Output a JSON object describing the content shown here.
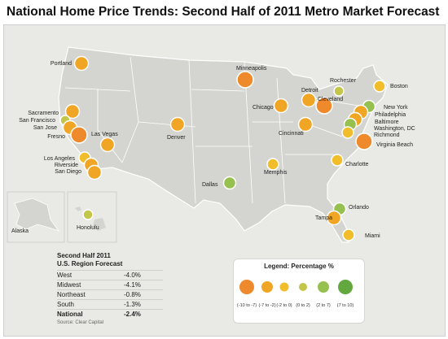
{
  "title": "National Home Price Trends: Second Half of 2011 Metro Market Forecast",
  "colors": {
    "dark_orange": "#ee8a2c",
    "orange": "#f0a624",
    "yellow_orange": "#f2bd2a",
    "yellow_green": "#c4c64a",
    "light_green": "#96c050",
    "green": "#62a83e"
  },
  "cities": [
    {
      "name": "Portland",
      "cat": 1
    },
    {
      "name": "Sacramento",
      "cat": 1
    },
    {
      "name": "San Francisco",
      "cat": 3
    },
    {
      "name": "San Jose",
      "cat": 1
    },
    {
      "name": "Fresno",
      "cat": 0
    },
    {
      "name": "Las Vegas",
      "cat": 1
    },
    {
      "name": "Los Angeles",
      "cat": 2
    },
    {
      "name": "Riverside",
      "cat": 1
    },
    {
      "name": "San Diego",
      "cat": 1
    },
    {
      "name": "Denver",
      "cat": 1
    },
    {
      "name": "Minneapolis",
      "cat": 0
    },
    {
      "name": "Chicago",
      "cat": 1
    },
    {
      "name": "Detroit",
      "cat": 1
    },
    {
      "name": "Cleveland",
      "cat": 0
    },
    {
      "name": "Cincinnati",
      "cat": 1
    },
    {
      "name": "Rochester",
      "cat": 3
    },
    {
      "name": "Boston",
      "cat": 2
    },
    {
      "name": "New York",
      "cat": 4
    },
    {
      "name": "Philadelphia",
      "cat": 1
    },
    {
      "name": "Baltimore",
      "cat": 1
    },
    {
      "name": "Washington, DC",
      "cat": 4
    },
    {
      "name": "Richmond",
      "cat": 2
    },
    {
      "name": "Virginia Beach",
      "cat": 0
    },
    {
      "name": "Charlotte",
      "cat": 2
    },
    {
      "name": "Memphis",
      "cat": 2
    },
    {
      "name": "Dallas",
      "cat": 4
    },
    {
      "name": "Orlando",
      "cat": 4
    },
    {
      "name": "Tampa",
      "cat": 1
    },
    {
      "name": "Miami",
      "cat": 2
    },
    {
      "name": "Honolulu",
      "cat": 3
    }
  ],
  "inset_labels": {
    "alaska": "Alaska"
  },
  "region_forecast": {
    "heading1": "Second Half 2011",
    "heading2": "U.S. Region Forecast",
    "rows": [
      {
        "region": "West",
        "value": "-4.0%"
      },
      {
        "region": "Midwest",
        "value": "-4.1%"
      },
      {
        "region": "Northeast",
        "value": "-0.8%"
      },
      {
        "region": "South",
        "value": "-1.3%"
      },
      {
        "region": "National",
        "value": "-2.4%"
      }
    ],
    "source": "Source: Clear Capital"
  },
  "legend": {
    "title": "Legend: Percentage %",
    "ranges": [
      "(-10 to -7)",
      "(-7 to -2)",
      "(-2 to 0)",
      "(0 to 2)",
      "(2 to 7)",
      "(7 to 10)"
    ]
  }
}
